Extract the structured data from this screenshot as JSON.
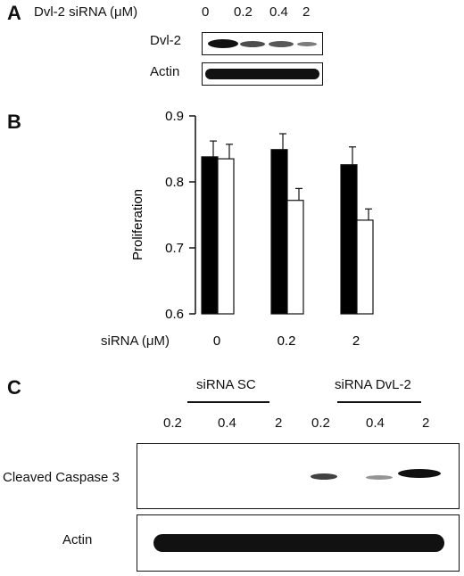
{
  "panel_a": {
    "letter": "A",
    "header_label": "Dvl-2 siRNA (μM)",
    "concentrations": [
      "0",
      "0.2",
      "0.4",
      "2"
    ],
    "row_labels": [
      "Dvl-2",
      "Actin"
    ]
  },
  "panel_b": {
    "letter": "B",
    "xlabel": "siRNA (μM)",
    "chart_data": {
      "type": "bar",
      "categories": [
        "0",
        "0.2",
        "2"
      ],
      "series": [
        {
          "fill": "#000000",
          "values": [
            0.838,
            0.849,
            0.826
          ],
          "errors": [
            0.024,
            0.024,
            0.027
          ]
        },
        {
          "fill": "#ffffff",
          "values": [
            0.835,
            0.772,
            0.742
          ],
          "errors": [
            0.022,
            0.018,
            0.017
          ]
        }
      ],
      "ylabel": "Proliferation",
      "yticks": [
        "0.6",
        "0.7",
        "0.8",
        "0.9"
      ],
      "ylim": [
        0.6,
        0.9
      ],
      "grid": false
    }
  },
  "panel_c": {
    "letter": "C",
    "group_labels": [
      "siRNA SC",
      "siRNA DvL-2"
    ],
    "concentrations_sc": [
      "0.2",
      "0.4",
      "2"
    ],
    "concentrations_dvl": [
      "0.2",
      "0.4",
      "2"
    ],
    "row_labels": [
      "Cleaved Caspase 3",
      "Actin"
    ]
  }
}
